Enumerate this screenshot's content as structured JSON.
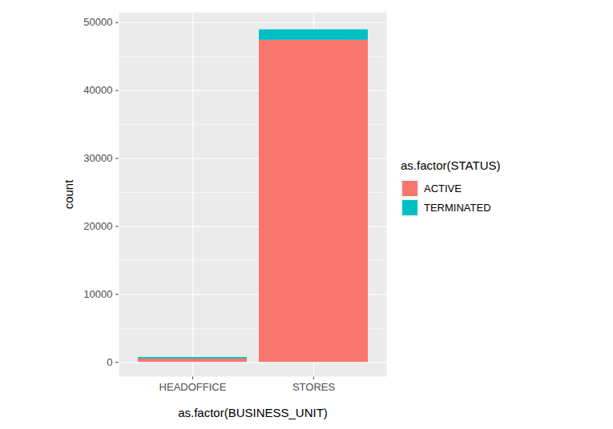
{
  "chart_data": {
    "type": "bar",
    "stacked": true,
    "categories": [
      "HEADOFFICE",
      "STORES"
    ],
    "series": [
      {
        "name": "ACTIVE",
        "color": "#F8766D",
        "values": [
          500,
          47400
        ]
      },
      {
        "name": "TERMINATED",
        "color": "#00BFC4",
        "values": [
          220,
          1550
        ]
      }
    ],
    "x_label": "as.factor(BUSINESS_UNIT)",
    "y_label": "count",
    "legend_title": "as.factor(STATUS)",
    "legend": "right",
    "ylim": [
      -2100,
      51500
    ],
    "yticks": [
      0,
      10000,
      20000,
      30000,
      40000,
      50000
    ],
    "grid": true
  }
}
